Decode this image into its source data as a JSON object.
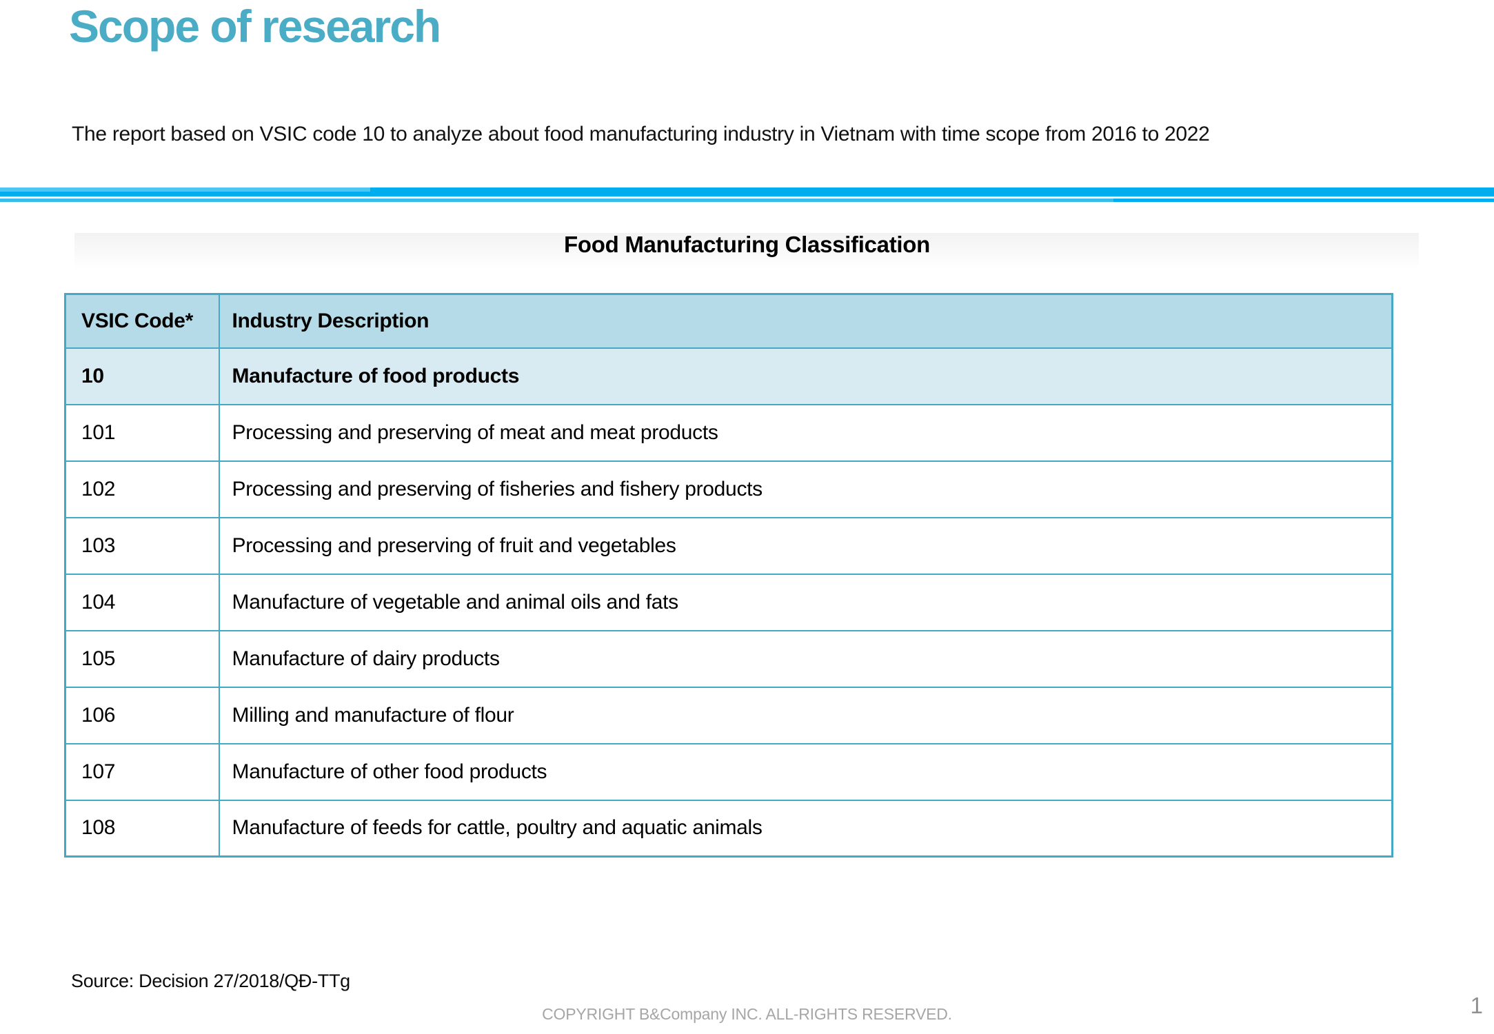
{
  "slide": {
    "title": "Scope of research",
    "intro": "The report based on VSIC code 10 to analyze about food manufacturing industry in Vietnam with time scope from 2016 to 2022",
    "table_title": "Food Manufacturing Classification",
    "source": "Source: Decision 27/2018/QĐ-TTg",
    "footer_copyright": "COPYRIGHT B&Company INC. ALL-RIGHTS RESERVED.",
    "page_number": "1"
  },
  "table": {
    "headers": [
      "VSIC Code*",
      "Industry Description"
    ],
    "rows": [
      {
        "code": "10",
        "description": "Manufacture of food products",
        "bold": true
      },
      {
        "code": "101",
        "description": "Processing and preserving of meat and meat products",
        "bold": false
      },
      {
        "code": "102",
        "description": "Processing and preserving of fisheries and fishery products",
        "bold": false
      },
      {
        "code": "103",
        "description": "Processing and preserving of fruit and vegetables",
        "bold": false
      },
      {
        "code": "104",
        "description": "Manufacture of vegetable and animal oils and fats",
        "bold": false
      },
      {
        "code": "105",
        "description": "Manufacture of dairy products",
        "bold": false
      },
      {
        "code": "106",
        "description": "Milling and manufacture of flour",
        "bold": false
      },
      {
        "code": "107",
        "description": "Manufacture of other food products",
        "bold": false
      },
      {
        "code": "108",
        "description": "Manufacture of feeds for cattle, poultry and aquatic animals",
        "bold": false
      }
    ]
  },
  "colors": {
    "accent-teal": "#4BACC6",
    "divider-blue": "#00AEEF",
    "table-border": "#45A8C4",
    "header-row-bg": "#B4DBE7",
    "subheader-row-bg": "#D8EAF2",
    "muted-gray": "#A6A6A6",
    "text-black": "#0B0B0B"
  }
}
